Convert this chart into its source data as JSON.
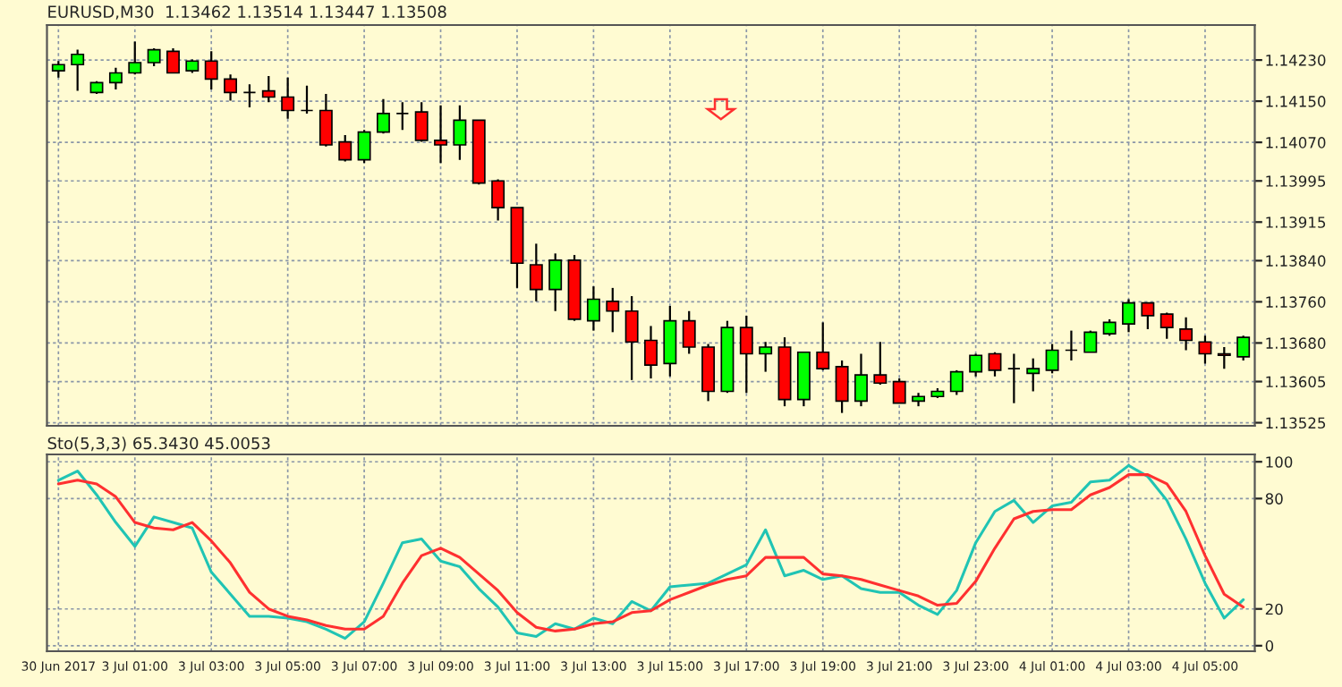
{
  "chart_data": [
    {
      "type": "candlestick",
      "title": "EURUSD,M30  1.13462 1.13514 1.13447 1.13508",
      "categories": [
        null,
        null,
        null,
        null,
        null,
        null,
        null,
        null,
        null,
        null,
        null,
        null,
        null,
        null,
        null,
        null,
        null,
        null,
        null,
        null,
        null,
        null,
        null,
        null,
        null,
        null,
        null,
        null,
        null,
        null,
        null,
        null,
        null,
        null,
        null,
        null,
        null,
        null,
        null,
        null,
        null,
        null,
        null,
        null,
        null,
        null,
        null,
        null,
        null,
        null,
        null,
        null,
        null,
        null,
        null,
        null,
        null,
        null,
        null,
        null,
        null,
        null,
        null
      ],
      "ohlc": [
        [
          1.14209,
          1.14228,
          1.14196,
          1.14221
        ],
        [
          1.14221,
          1.1425,
          1.1417,
          1.14241
        ],
        [
          1.14167,
          1.14189,
          1.14164,
          1.14186
        ],
        [
          1.14186,
          1.14215,
          1.14173,
          1.14205
        ],
        [
          1.14205,
          1.14266,
          1.14202,
          1.14225
        ],
        [
          1.14225,
          1.14253,
          1.14218,
          1.1425
        ],
        [
          1.14247,
          1.14253,
          1.14205,
          1.14205
        ],
        [
          1.14209,
          1.14231,
          1.14205,
          1.14228
        ],
        [
          1.14228,
          1.14247,
          1.14173,
          1.14193
        ],
        [
          1.14193,
          1.14202,
          1.14151,
          1.14167
        ],
        [
          1.14167,
          1.14183,
          1.14138,
          1.14167
        ],
        [
          1.1417,
          1.14199,
          1.14148,
          1.14158
        ],
        [
          1.14158,
          1.14196,
          1.14116,
          1.14132
        ],
        [
          1.14132,
          1.1418,
          1.14126,
          1.14132
        ],
        [
          1.14132,
          1.14164,
          1.14062,
          1.14065
        ],
        [
          1.14071,
          1.14084,
          1.14033,
          1.14036
        ],
        [
          1.14036,
          1.14094,
          1.1403,
          1.1409
        ],
        [
          1.1409,
          1.14154,
          1.14087,
          1.14126
        ],
        [
          1.14126,
          1.14148,
          1.14094,
          1.14126
        ],
        [
          1.14129,
          1.14148,
          1.14071,
          1.14074
        ],
        [
          1.14074,
          1.14142,
          1.1403,
          1.14065
        ],
        [
          1.14065,
          1.14142,
          1.14036,
          1.14113
        ],
        [
          1.14113,
          1.14113,
          1.13988,
          1.13991
        ],
        [
          1.13995,
          1.13998,
          1.13918,
          1.13943
        ],
        [
          1.13943,
          1.13943,
          1.13787,
          1.13835
        ],
        [
          1.13832,
          1.13873,
          1.13761,
          1.13784
        ],
        [
          1.13784,
          1.13854,
          1.13742,
          1.13841
        ],
        [
          1.13841,
          1.13851,
          1.13723,
          1.13726
        ],
        [
          1.13723,
          1.1379,
          1.13704,
          1.13765
        ],
        [
          1.13761,
          1.13787,
          1.13701,
          1.13742
        ],
        [
          1.13742,
          1.13771,
          1.13608,
          1.13682
        ],
        [
          1.13685,
          1.13713,
          1.13611,
          1.13637
        ],
        [
          1.1364,
          1.13752,
          1.13615,
          1.13723
        ],
        [
          1.13723,
          1.13742,
          1.13659,
          1.13672
        ],
        [
          1.13672,
          1.13678,
          1.13567,
          1.13586
        ],
        [
          1.13586,
          1.13723,
          1.13583,
          1.1371
        ],
        [
          1.1371,
          1.13733,
          1.13583,
          1.13659
        ],
        [
          1.13659,
          1.13682,
          1.13624,
          1.13672
        ],
        [
          1.13672,
          1.13691,
          1.13557,
          1.1357
        ],
        [
          1.1357,
          1.13662,
          1.13557,
          1.13662
        ],
        [
          1.13662,
          1.1372,
          1.13627,
          1.1363
        ],
        [
          1.13634,
          1.13646,
          1.13544,
          1.13567
        ],
        [
          1.13567,
          1.13659,
          1.13557,
          1.13618
        ],
        [
          1.13618,
          1.13682,
          1.13599,
          1.13602
        ],
        [
          1.13605,
          1.13611,
          1.13563,
          1.13563
        ],
        [
          1.13567,
          1.13583,
          1.13557,
          1.13576
        ],
        [
          1.13576,
          1.13592,
          1.13573,
          1.13586
        ],
        [
          1.13586,
          1.13627,
          1.13579,
          1.13624
        ],
        [
          1.13624,
          1.13659,
          1.13615,
          1.13656
        ],
        [
          1.13659,
          1.13662,
          1.13615,
          1.13627
        ],
        [
          1.1363,
          1.13659,
          1.13563,
          1.1363
        ],
        [
          1.13621,
          1.1365,
          1.13586,
          1.1363
        ],
        [
          1.13627,
          1.13678,
          1.13621,
          1.13666
        ],
        [
          1.13666,
          1.13704,
          1.13646,
          1.13666
        ],
        [
          1.13662,
          1.13704,
          1.13662,
          1.13701
        ],
        [
          1.13698,
          1.13726,
          1.13694,
          1.1372
        ],
        [
          1.13717,
          1.13765,
          1.13701,
          1.13758
        ],
        [
          1.13758,
          1.13758,
          1.13707,
          1.13733
        ],
        [
          1.13736,
          1.13739,
          1.13688,
          1.1371
        ],
        [
          1.13707,
          1.1373,
          1.13666,
          1.13685
        ],
        [
          1.13682,
          1.13694,
          1.1364,
          1.13659
        ],
        [
          1.13659,
          1.13672,
          1.1363,
          1.13656
        ],
        [
          1.13653,
          1.13694,
          1.13646,
          1.13691
        ]
      ],
      "colors": [
        "#00ff00",
        "#00ff00",
        "#00ff00",
        "#00ff00",
        "#00ff00",
        "#00ff00",
        "#ff0000",
        "#00ff00",
        "#ff0000",
        "#ff0000",
        "#000000",
        "#ff0000",
        "#ff0000",
        "#000000",
        "#ff0000",
        "#ff0000",
        "#00ff00",
        "#00ff00",
        "#000000",
        "#ff0000",
        "#ff0000",
        "#00ff00",
        "#ff0000",
        "#ff0000",
        "#ff0000",
        "#ff0000",
        "#00ff00",
        "#ff0000",
        "#00ff00",
        "#ff0000",
        "#ff0000",
        "#ff0000",
        "#00ff00",
        "#ff0000",
        "#ff0000",
        "#00ff00",
        "#ff0000",
        "#00ff00",
        "#ff0000",
        "#00ff00",
        "#ff0000",
        "#ff0000",
        "#00ff00",
        "#ff0000",
        "#ff0000",
        "#00ff00",
        "#00ff00",
        "#00ff00",
        "#00ff00",
        "#ff0000",
        "#000000",
        "#00ff00",
        "#00ff00",
        "#000000",
        "#00ff00",
        "#00ff00",
        "#00ff00",
        "#ff0000",
        "#ff0000",
        "#ff0000",
        "#ff0000",
        "#ff0000",
        "#00ff00"
      ],
      "ylim": [
        1.13519,
        1.14298
      ],
      "yticks": [
        {
          "value": 1.13525,
          "label": "1.13525"
        },
        {
          "value": 1.13605,
          "label": "1.13605"
        },
        {
          "value": 1.1368,
          "label": "1.13680"
        },
        {
          "value": 1.1376,
          "label": "1.13760"
        },
        {
          "value": 1.1384,
          "label": "1.13840"
        },
        {
          "value": 1.13915,
          "label": "1.13915"
        },
        {
          "value": 1.13995,
          "label": "1.13995"
        },
        {
          "value": 1.1407,
          "label": "1.14070"
        },
        {
          "value": 1.1415,
          "label": "1.14150"
        },
        {
          "value": 1.1423,
          "label": "1.14230"
        }
      ],
      "grid": true,
      "tick_labels": "y"
    },
    {
      "type": "line",
      "title": "Sto(5,3,3) 65.3430 45.0053",
      "categories": [
        "30 Jun 2017",
        null,
        null,
        null,
        "3 Jul 01:00",
        null,
        null,
        null,
        "3 Jul 03:00",
        null,
        null,
        null,
        "3 Jul 05:00",
        null,
        null,
        null,
        "3 Jul 07:00",
        null,
        null,
        null,
        "3 Jul 09:00",
        null,
        null,
        null,
        "3 Jul 11:00",
        null,
        null,
        null,
        "3 Jul 13:00",
        null,
        null,
        null,
        "3 Jul 15:00",
        null,
        null,
        null,
        "3 Jul 17:00",
        null,
        null,
        null,
        "3 Jul 19:00",
        null,
        null,
        null,
        "3 Jul 21:00",
        null,
        null,
        null,
        "3 Jul 23:00",
        null,
        null,
        null,
        "4 Jul 01:00",
        null,
        null,
        null,
        "4 Jul 03:00",
        null,
        null,
        null,
        "4 Jul 05:00",
        null,
        null
      ],
      "series": [
        {
          "color": "#20c4b4",
          "values": [
            90,
            95,
            82,
            67,
            54,
            70,
            67,
            64,
            40,
            28,
            16,
            16,
            15,
            13,
            9,
            4,
            13,
            34,
            56,
            58,
            46,
            43,
            31,
            21,
            7,
            5,
            12,
            9,
            15,
            12,
            24,
            19,
            32,
            33,
            34,
            39,
            44,
            63,
            38,
            41,
            36,
            38,
            31,
            29,
            29,
            22,
            17,
            30,
            56,
            73,
            79,
            67,
            76,
            78,
            89,
            90,
            98,
            92,
            79,
            58,
            34,
            15,
            25
          ]
        },
        {
          "color": "#ff3030",
          "values": [
            88,
            90,
            88,
            81,
            67,
            64,
            63,
            67,
            57,
            45,
            29,
            20,
            16,
            14,
            11,
            9,
            9,
            16,
            34,
            49,
            53,
            48,
            39,
            30,
            18,
            10,
            8,
            9,
            12,
            13,
            18,
            19,
            25,
            29,
            33,
            36,
            38,
            48,
            48,
            48,
            39,
            38,
            36,
            33,
            30,
            27,
            22,
            23,
            35,
            53,
            69,
            73,
            74,
            74,
            82,
            86,
            93,
            93,
            88,
            73,
            49,
            28,
            21
          ]
        }
      ],
      "ylim": [
        -3,
        104
      ],
      "yticks": [
        0,
        20,
        80,
        100
      ],
      "grid": true
    }
  ]
}
